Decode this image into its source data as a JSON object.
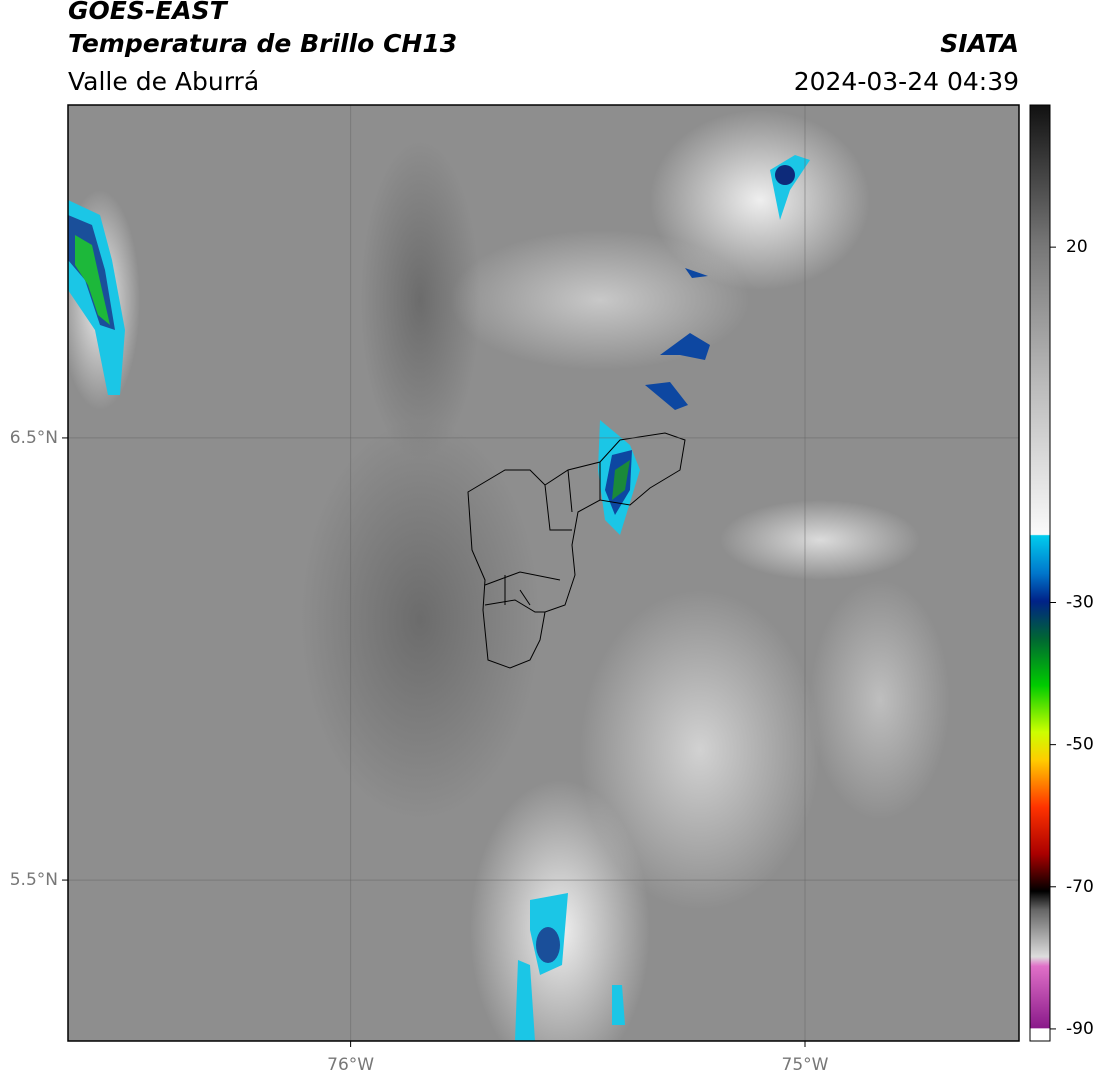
{
  "header": {
    "title": "GOES-EAST",
    "subtitle": "Temperatura de Brillo CH13",
    "region": "Valle de Aburrá",
    "source": "SIATA",
    "datetime": "2024-03-24 04:39"
  },
  "map": {
    "xlim": [
      -76.622,
      -74.529
    ],
    "ylim": [
      5.136,
      7.253
    ],
    "xticks": [
      {
        "value": -76,
        "label": "76°W"
      },
      {
        "value": -75,
        "label": "75°W"
      }
    ],
    "yticks": [
      {
        "value": 6.5,
        "label": "6.5°N"
      },
      {
        "value": 5.5,
        "label": "5.5°N"
      }
    ],
    "grid": true
  },
  "colorbar": {
    "lim": [
      -91.7,
      40
    ],
    "ticks": [
      20,
      -30,
      -50,
      -70,
      -90
    ]
  }
}
